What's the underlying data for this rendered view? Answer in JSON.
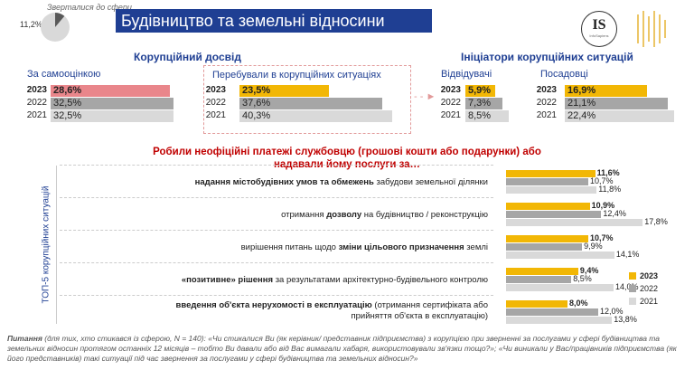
{
  "header": {
    "title": "Будівництво та земельні відносини",
    "pie_label": "Зверталися до сфери",
    "pie_value": "11,2%",
    "pie_fraction": 0.112,
    "logo_text": "IS",
    "logo_sub": "InfoSapiens"
  },
  "sections": {
    "experience_title": "Корупційний досвід",
    "initiators_title": "Ініціатори корупційних ситуацій"
  },
  "colors": {
    "title_bg": "#1f3f93",
    "bar_2023_self": "#e9868b",
    "bar_2023": "#f2b705",
    "bar_2022": "#a6a6a6",
    "bar_2021": "#d9d9d9",
    "accent_red": "#c00000",
    "blue": "#1f3f93"
  },
  "top_groups": [
    {
      "label": "За самооцінкою",
      "rows": [
        {
          "year": "2023",
          "value": 28.6,
          "text": "28,6%"
        },
        {
          "year": "2022",
          "value": 32.5,
          "text": "32,5%"
        },
        {
          "year": "2021",
          "value": 32.5,
          "text": "32,5%"
        }
      ]
    },
    {
      "label": "Перебували в корупційних ситуаціях",
      "rows": [
        {
          "year": "2023",
          "value": 23.5,
          "text": "23,5%"
        },
        {
          "year": "2022",
          "value": 37.6,
          "text": "37,6%"
        },
        {
          "year": "2021",
          "value": 40.3,
          "text": "40,3%"
        }
      ]
    },
    {
      "label": "Відвідувачі",
      "rows": [
        {
          "year": "2023",
          "value": 5.9,
          "text": "5,9%"
        },
        {
          "year": "2022",
          "value": 7.3,
          "text": "7,3%"
        },
        {
          "year": "2021",
          "value": 8.5,
          "text": "8,5%"
        }
      ]
    },
    {
      "label": "Посадовці",
      "rows": [
        {
          "year": "2023",
          "value": 16.9,
          "text": "16,9%"
        },
        {
          "year": "2022",
          "value": 21.1,
          "text": "21,1%"
        },
        {
          "year": "2021",
          "value": 22.4,
          "text": "22,4%"
        }
      ]
    }
  ],
  "question": {
    "line1": "Робили неофіційні платежі службовцю (грошові кошти або подарунки) або",
    "line2": "надавали йому послуги за…"
  },
  "side_label": "ТОП-5 корупційних ситуацій",
  "top5": [
    {
      "parts": [
        {
          "t": "надання містобудівних умов та обмежень",
          "b": true
        },
        {
          "t": " забудови земельної ділянки",
          "b": false
        }
      ],
      "v2023": 11.6,
      "t2023": "11,6%",
      "v2022": 10.7,
      "t2022": "10,7%",
      "v2021": 11.8,
      "t2021": "11,8%"
    },
    {
      "parts": [
        {
          "t": "отримання ",
          "b": false
        },
        {
          "t": "дозволу",
          "b": true
        },
        {
          "t": " на будівництво / реконструкцію",
          "b": false
        }
      ],
      "v2023": 10.9,
      "t2023": "10,9%",
      "v2022": 12.4,
      "t2022": "12,4%",
      "v2021": 17.8,
      "t2021": "17,8%"
    },
    {
      "parts": [
        {
          "t": "вирішення питань щодо ",
          "b": false
        },
        {
          "t": "зміни цільового призначення",
          "b": true
        },
        {
          "t": " землі",
          "b": false
        }
      ],
      "v2023": 10.7,
      "t2023": "10,7%",
      "v2022": 9.9,
      "t2022": "9,9%",
      "v2021": 14.1,
      "t2021": "14,1%"
    },
    {
      "parts": [
        {
          "t": "«позитивне» рішення",
          "b": true
        },
        {
          "t": " за результатами архітектурно-будівельного контролю",
          "b": false
        }
      ],
      "v2023": 9.4,
      "t2023": "9,4%",
      "v2022": 8.5,
      "t2022": "8,5%",
      "v2021": 14.0,
      "t2021": "14,0%"
    },
    {
      "parts": [
        {
          "t": "введення об'єкта нерухомості в експлуатацію",
          "b": true
        },
        {
          "t": " (отримання сертифіката або",
          "b": false
        }
      ],
      "line2": "прийняття об'єкта в експлуатацію)",
      "v2023": 8.0,
      "t2023": "8,0%",
      "v2022": 12.0,
      "t2022": "12,0%",
      "v2021": 13.8,
      "t2021": "13,8%"
    }
  ],
  "legend": [
    "2023",
    "2022",
    "2021"
  ],
  "footer": {
    "label": "Питання",
    "text": " (для тих, хто стикався із сферою, N = 140): «Чи стикалися Ви (як керівник/ представник підприємства) з корупцією  при зверненні за послугами у сфері будівництва та земельних відносин протягом останніх 12 місяців – тобто Ви давали або від Вас вимагали хабаря, використовували зв'язки тощо?»; «Чи виникали у Вас/працівників підприємства (як його представників) такі ситуації під час звернення за послугами у сфері будівництва та земельних відносин?»"
  },
  "chart_data": [
    {
      "type": "bar",
      "title": "Корупційний досвід",
      "categories": [
        "За самооцінкою",
        "Перебували в корупційних ситуаціях"
      ],
      "series": [
        {
          "name": "2023",
          "values": [
            28.6,
            23.5
          ]
        },
        {
          "name": "2022",
          "values": [
            32.5,
            37.6
          ]
        },
        {
          "name": "2021",
          "values": [
            32.5,
            40.3
          ]
        }
      ]
    },
    {
      "type": "bar",
      "title": "Ініціатори корупційних ситуацій",
      "categories": [
        "Відвідувачі",
        "Посадовці"
      ],
      "series": [
        {
          "name": "2023",
          "values": [
            5.9,
            16.9
          ]
        },
        {
          "name": "2022",
          "values": [
            7.3,
            21.1
          ]
        },
        {
          "name": "2021",
          "values": [
            8.5,
            22.4
          ]
        }
      ]
    },
    {
      "type": "bar",
      "title": "Робили неофіційні платежі службовцю (грошові кошти або подарунки) або надавали йому послуги за…",
      "categories": [
        "надання містобудівних умов та обмежень забудови земельної ділянки",
        "отримання дозволу на будівництво / реконструкцію",
        "вирішення питань щодо зміни цільового призначення землі",
        "«позитивне» рішення за результатами архітектурно-будівельного контролю",
        "введення об'єкта нерухомості в експлуатацію (отримання сертифіката або прийняття об'єкта в експлуатацію)"
      ],
      "series": [
        {
          "name": "2023",
          "values": [
            11.6,
            10.9,
            10.7,
            9.4,
            8.0
          ]
        },
        {
          "name": "2022",
          "values": [
            10.7,
            12.4,
            9.9,
            8.5,
            12.0
          ]
        },
        {
          "name": "2021",
          "values": [
            11.8,
            17.8,
            14.1,
            14.0,
            13.8
          ]
        }
      ],
      "legend_position": "right"
    }
  ]
}
